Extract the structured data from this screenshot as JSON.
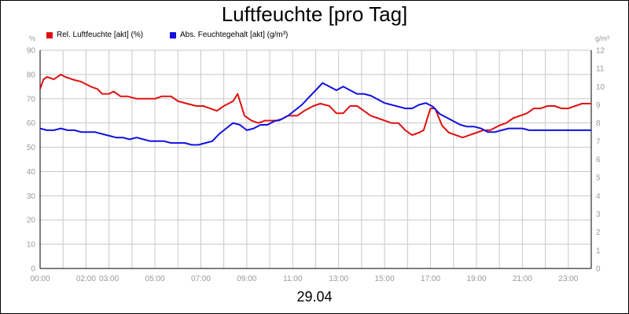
{
  "chart_data": {
    "type": "line",
    "title": "Luftfeuchte [pro Tag]",
    "xlabel": "29.04",
    "grid": true,
    "legend": "top-left",
    "x_ticks": [
      "00:00",
      "02:00",
      "03:00",
      "05:00",
      "07:00",
      "09:00",
      "11:00",
      "13:00",
      "15:00",
      "17:00",
      "19:00",
      "21:00",
      "23:00"
    ],
    "x_tick_hours": [
      0,
      2,
      3,
      5,
      7,
      9,
      11,
      13,
      15,
      17,
      19,
      21,
      23
    ],
    "x_range_hours": [
      0,
      24
    ],
    "y_left": {
      "unit": "%",
      "ylim": [
        0,
        90
      ],
      "ticks": [
        "0",
        "10",
        "20",
        "30",
        "40",
        "50",
        "60",
        "70",
        "80",
        "90"
      ]
    },
    "y_right": {
      "unit": "g/m³",
      "ylim": [
        0,
        12
      ],
      "ticks": [
        "0",
        "1",
        "2",
        "3",
        "4",
        "5",
        "6",
        "7",
        "8",
        "9",
        "10",
        "11",
        "12"
      ]
    },
    "series": [
      {
        "name": "Rel. Luftfeuchte [akt] (%)",
        "color": "#e01010",
        "axis": "left",
        "x": [
          0,
          0.15,
          0.3,
          0.6,
          0.9,
          1.1,
          1.4,
          1.8,
          2.2,
          2.5,
          2.7,
          3.0,
          3.2,
          3.5,
          3.8,
          4.2,
          4.6,
          5.0,
          5.3,
          5.7,
          6.0,
          6.4,
          6.8,
          7.1,
          7.4,
          7.7,
          8.0,
          8.2,
          8.4,
          8.6,
          8.9,
          9.2,
          9.5,
          9.8,
          10.1,
          10.4,
          10.8,
          11.2,
          11.5,
          11.9,
          12.2,
          12.6,
          12.9,
          13.2,
          13.5,
          13.8,
          14.1,
          14.4,
          14.7,
          15.0,
          15.3,
          15.6,
          15.9,
          16.2,
          16.5,
          16.7,
          17.0,
          17.2,
          17.5,
          17.8,
          18.1,
          18.4,
          18.7,
          19.0,
          19.3,
          19.6,
          20.0,
          20.3,
          20.6,
          20.9,
          21.2,
          21.5,
          21.8,
          22.1,
          22.4,
          22.7,
          23.0,
          23.3,
          23.6,
          24.0
        ],
        "values": [
          74,
          78,
          79,
          78,
          80,
          79,
          78,
          77,
          75,
          74,
          72,
          72,
          73,
          71,
          71,
          70,
          70,
          70,
          71,
          71,
          69,
          68,
          67,
          67,
          66,
          65,
          67,
          68,
          69,
          72,
          63,
          61,
          60,
          61,
          61,
          61,
          63,
          63,
          65,
          67,
          68,
          67,
          64,
          64,
          67,
          67,
          65,
          63,
          62,
          61,
          60,
          60,
          57,
          55,
          56,
          57,
          66,
          66,
          59,
          56,
          55,
          54,
          55,
          56,
          57,
          57,
          59,
          60,
          62,
          63,
          64,
          66,
          66,
          67,
          67,
          66,
          66,
          67,
          68,
          68
        ]
      },
      {
        "name": "Abs. Feuchtegehalt [akt] (g/m³)",
        "color": "#1010e0",
        "axis": "right",
        "x": [
          0,
          0.3,
          0.6,
          0.9,
          1.2,
          1.5,
          1.8,
          2.1,
          2.4,
          2.7,
          3.0,
          3.3,
          3.6,
          3.9,
          4.2,
          4.5,
          4.8,
          5.1,
          5.4,
          5.7,
          6.0,
          6.3,
          6.6,
          6.9,
          7.2,
          7.5,
          7.8,
          8.1,
          8.4,
          8.7,
          9.0,
          9.3,
          9.6,
          9.9,
          10.2,
          10.5,
          10.8,
          11.1,
          11.4,
          11.7,
          12.0,
          12.3,
          12.6,
          12.9,
          13.2,
          13.5,
          13.8,
          14.1,
          14.4,
          14.7,
          15.0,
          15.3,
          15.6,
          15.9,
          16.2,
          16.5,
          16.8,
          17.1,
          17.4,
          17.7,
          18.0,
          18.3,
          18.6,
          18.9,
          19.2,
          19.5,
          19.8,
          20.1,
          20.4,
          20.7,
          21.0,
          21.3,
          21.6,
          21.9,
          22.2,
          22.5,
          22.8,
          23.1,
          23.4,
          23.7,
          24.0
        ],
        "values": [
          7.7,
          7.6,
          7.6,
          7.7,
          7.6,
          7.6,
          7.5,
          7.5,
          7.5,
          7.4,
          7.3,
          7.2,
          7.2,
          7.1,
          7.2,
          7.1,
          7.0,
          7.0,
          7.0,
          6.9,
          6.9,
          6.9,
          6.8,
          6.8,
          6.9,
          7.0,
          7.4,
          7.7,
          8.0,
          7.9,
          7.6,
          7.7,
          7.9,
          7.9,
          8.1,
          8.2,
          8.4,
          8.7,
          9.0,
          9.4,
          9.8,
          10.2,
          10.0,
          9.8,
          10.0,
          9.8,
          9.6,
          9.6,
          9.5,
          9.3,
          9.1,
          9.0,
          8.9,
          8.8,
          8.8,
          9.0,
          9.1,
          8.9,
          8.5,
          8.3,
          8.1,
          7.9,
          7.8,
          7.8,
          7.7,
          7.5,
          7.5,
          7.6,
          7.7,
          7.7,
          7.7,
          7.6,
          7.6,
          7.6,
          7.6,
          7.6,
          7.6,
          7.6,
          7.6,
          7.6,
          7.6
        ]
      }
    ]
  }
}
